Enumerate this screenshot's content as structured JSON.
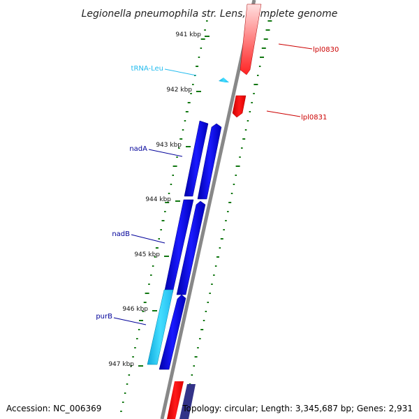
{
  "title": "Legionella pneumophila str. Lens, complete genome",
  "footer": {
    "accession": "Accession: NC_006369",
    "topology": "Topology: circular; Length: 3,345,687 bp; Genes: 2,931"
  },
  "ticks": [
    {
      "label": "941 kbp"
    },
    {
      "label": "942 kbp"
    },
    {
      "label": "943 kbp"
    },
    {
      "label": "944 kbp"
    },
    {
      "label": "945 kbp"
    },
    {
      "label": "946 kbp"
    },
    {
      "label": "947 kbp"
    }
  ],
  "genes": [
    {
      "name": "lpl0830",
      "color": "#cc0000"
    },
    {
      "name": "lpl0831",
      "color": "#cc0000"
    },
    {
      "name": "tRNA-Leu",
      "color": "#22bbee"
    },
    {
      "name": "nadA",
      "color": "#000099"
    },
    {
      "name": "nadB",
      "color": "#000099"
    },
    {
      "name": "purB",
      "color": "#000099"
    }
  ],
  "colors": {
    "cds_forward": "#0000ee",
    "cds_reverse": "#ff0000",
    "trna": "#22ccff",
    "backbone": "#888888",
    "gc_dots": "#117711"
  }
}
